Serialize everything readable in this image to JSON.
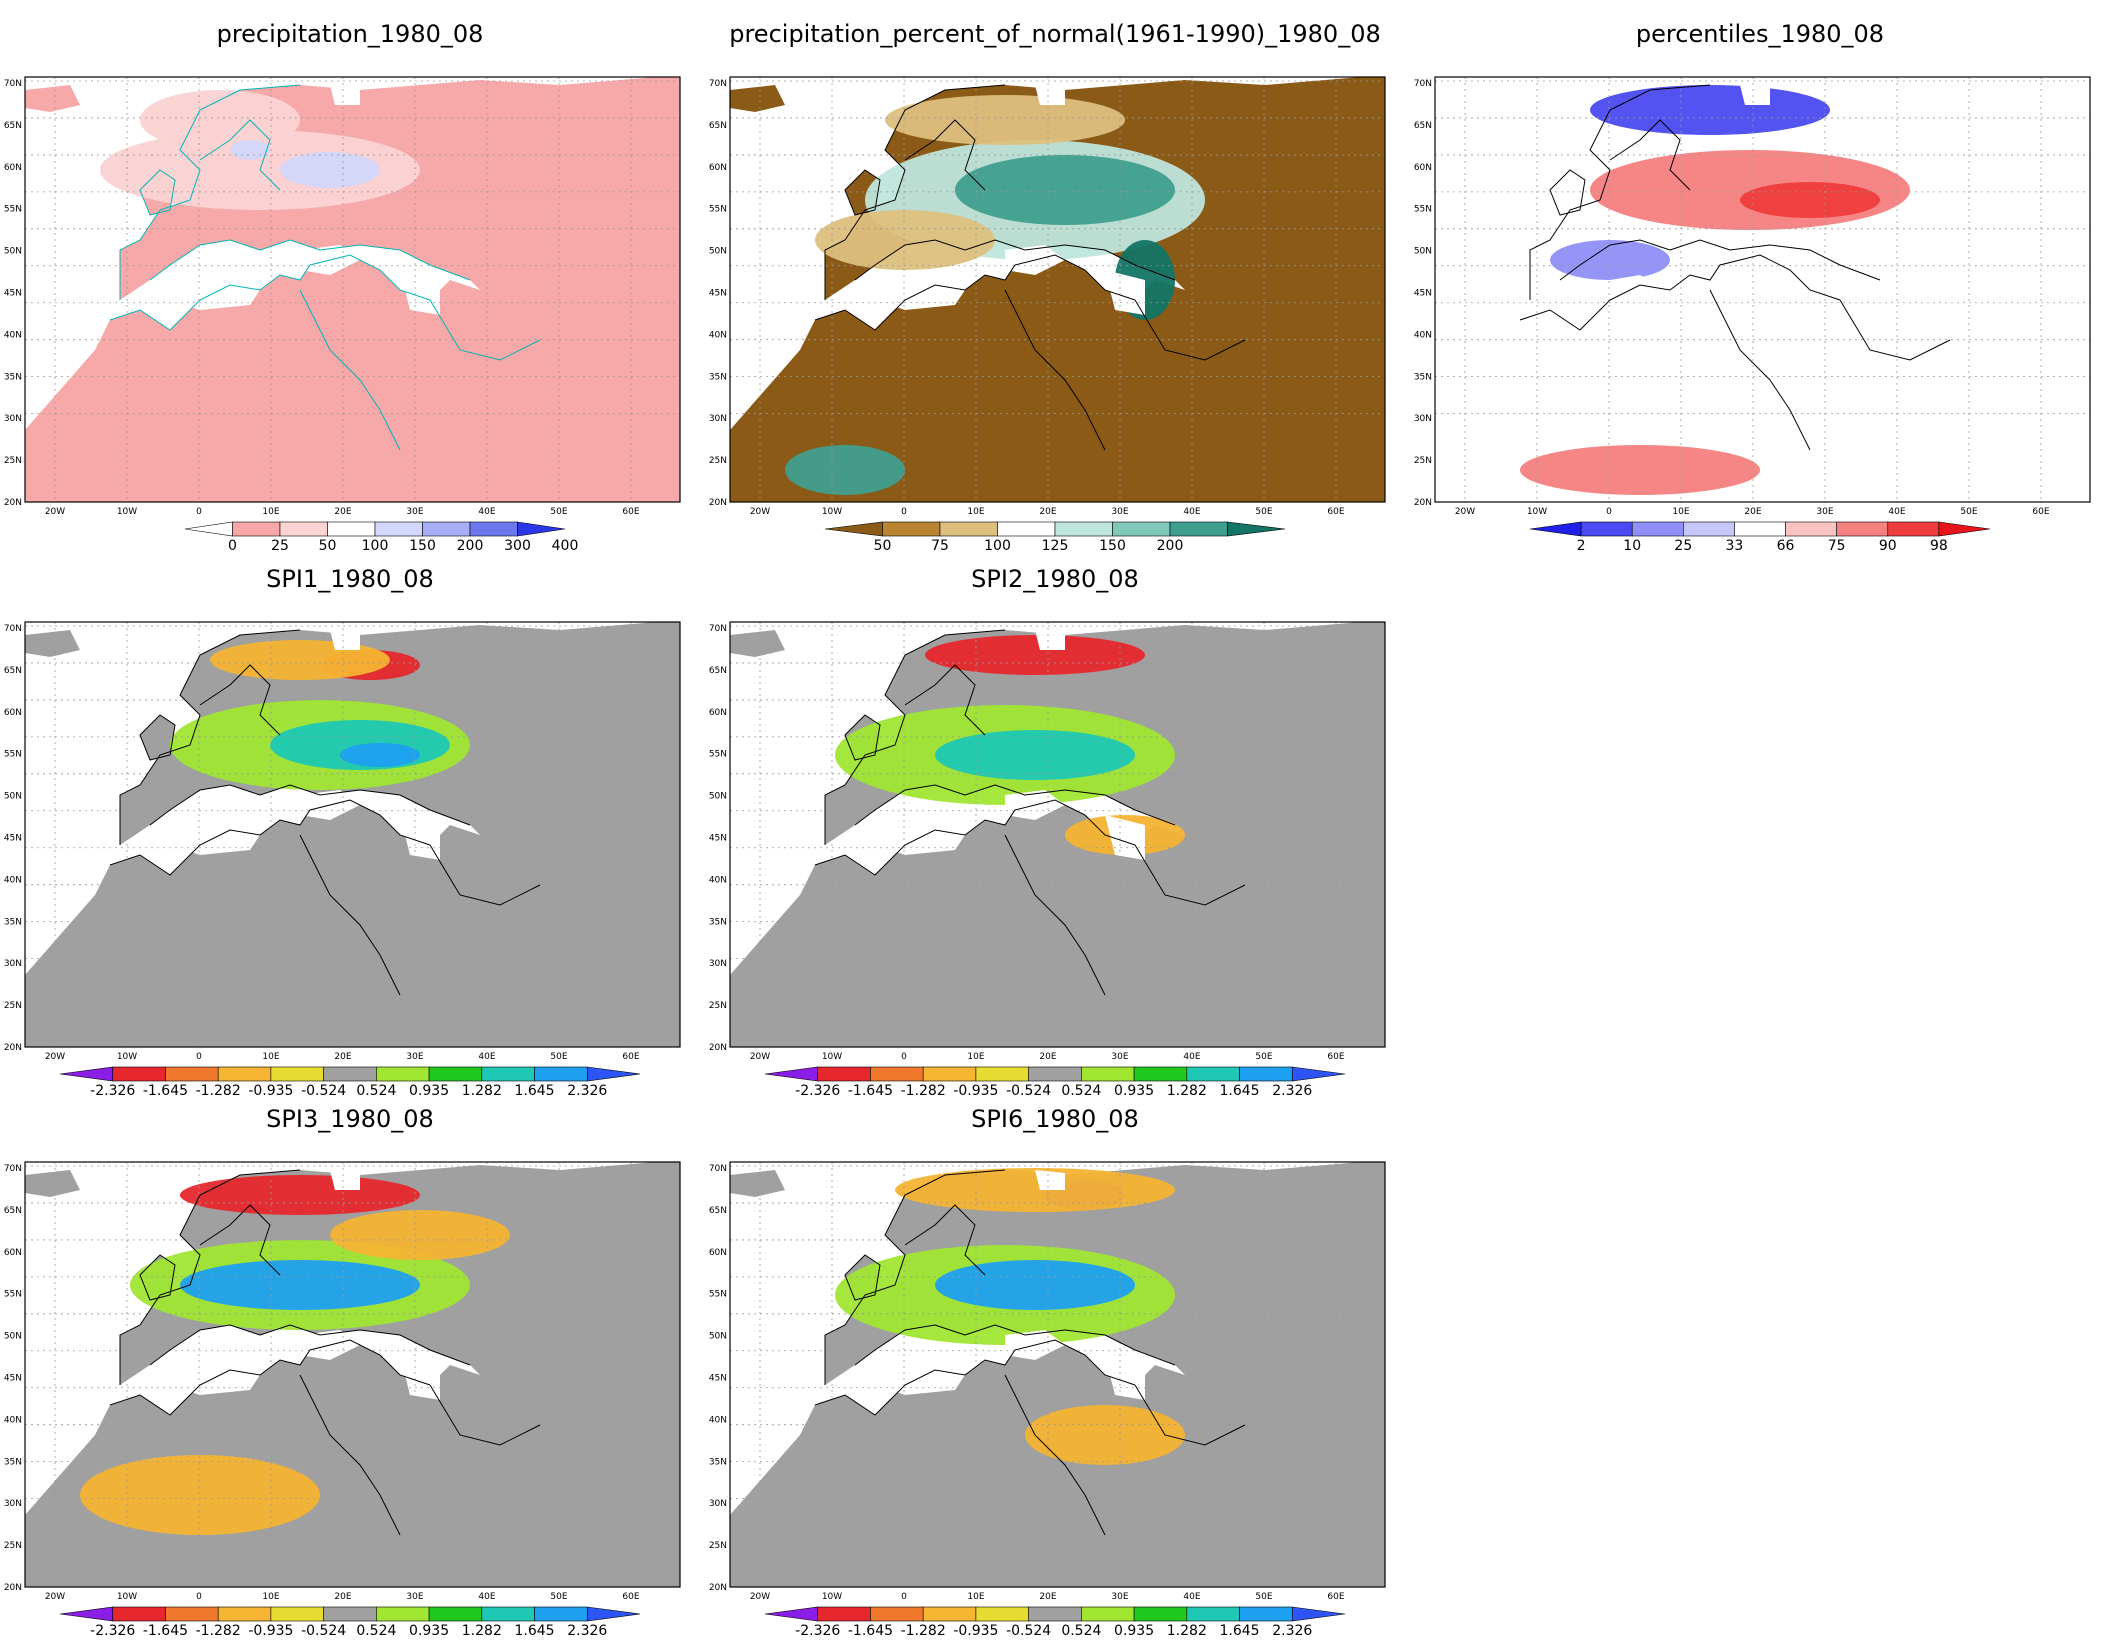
{
  "axes": {
    "lat_labels": [
      "70N",
      "65N",
      "60N",
      "55N",
      "50N",
      "45N",
      "40N",
      "35N",
      "30N",
      "25N",
      "20N"
    ],
    "lon_labels": [
      "20W",
      "10W",
      "0",
      "10E",
      "20E",
      "30E",
      "40E",
      "50E",
      "60E"
    ]
  },
  "colorbars": {
    "precip": {
      "colors": [
        "#ffffff",
        "#f7a7a7",
        "#fbd3d3",
        "#ffffff",
        "#d3d7fb",
        "#a7aef5",
        "#6e78ee",
        "#2b37e6"
      ],
      "labels": [
        "0",
        "25",
        "50",
        "100",
        "150",
        "200",
        "300",
        "400"
      ]
    },
    "pct": {
      "colors": [
        "#8b5a17",
        "#b98532",
        "#ddc07e",
        "#ffffff",
        "#bfe6dc",
        "#80c9b9",
        "#3f9f8e",
        "#127565"
      ],
      "labels": [
        "50",
        "75",
        "100",
        "125",
        "150",
        "200"
      ]
    },
    "perc": {
      "colors": [
        "#1f1fe8",
        "#4a4af0",
        "#8f8ff7",
        "#c6c6fb",
        "#ffffff",
        "#fbc2c2",
        "#f58080",
        "#ef3c3c",
        "#e8141c"
      ],
      "labels": [
        "2",
        "10",
        "25",
        "33",
        "66",
        "75",
        "90",
        "98"
      ]
    },
    "spi": {
      "colors": [
        "#8b1ee6",
        "#e6282d",
        "#f0782d",
        "#f5b432",
        "#e6dc32",
        "#a0a0a0",
        "#a0e632",
        "#1ec81e",
        "#1ec8b4",
        "#1ea0f0",
        "#2d55f5"
      ],
      "labels": [
        "-2.326",
        "-1.645",
        "-1.282",
        "-0.935",
        "-0.524",
        "0.524",
        "0.935",
        "1.282",
        "1.645",
        "2.326"
      ]
    }
  },
  "panels": [
    {
      "id": "precipitation",
      "title": "precipitation_1980_08",
      "colorbar": "precip",
      "land": "#f7a9a9",
      "outline": "#00b4b4",
      "blobs": [
        {
          "c": "#fbd3d3",
          "x": 260,
          "y": 120,
          "rx": 160,
          "ry": 40
        },
        {
          "c": "#d3d7fb",
          "x": 330,
          "y": 120,
          "rx": 50,
          "ry": 18
        },
        {
          "c": "#fbd3d3",
          "x": 220,
          "y": 70,
          "rx": 80,
          "ry": 30
        },
        {
          "c": "#d3d7fb",
          "x": 250,
          "y": 100,
          "rx": 20,
          "ry": 10
        }
      ]
    },
    {
      "id": "percent_of_normal",
      "title": "precipitation_percent_of_normal(1961-1990)_1980_08",
      "colorbar": "pct",
      "land": "#8b5a17",
      "outline": "#000000",
      "blobs": [
        {
          "c": "#bfe6dc",
          "x": 330,
          "y": 150,
          "rx": 170,
          "ry": 60
        },
        {
          "c": "#3f9f8e",
          "x": 360,
          "y": 140,
          "rx": 110,
          "ry": 35
        },
        {
          "c": "#ddc07e",
          "x": 300,
          "y": 70,
          "rx": 120,
          "ry": 25
        },
        {
          "c": "#ddc07e",
          "x": 200,
          "y": 190,
          "rx": 90,
          "ry": 30
        },
        {
          "c": "#127565",
          "x": 440,
          "y": 230,
          "rx": 30,
          "ry": 40
        },
        {
          "c": "#3f9f8e",
          "x": 140,
          "y": 420,
          "rx": 60,
          "ry": 25
        }
      ]
    },
    {
      "id": "percentiles",
      "title": "percentiles_1980_08",
      "colorbar": "perc",
      "land": "#ffffff",
      "outline": "#000000",
      "blobs": [
        {
          "c": "#f58080",
          "x": 340,
          "y": 140,
          "rx": 160,
          "ry": 40
        },
        {
          "c": "#ef3c3c",
          "x": 400,
          "y": 150,
          "rx": 70,
          "ry": 18
        },
        {
          "c": "#4a4af0",
          "x": 300,
          "y": 60,
          "rx": 120,
          "ry": 25
        },
        {
          "c": "#8f8ff7",
          "x": 200,
          "y": 210,
          "rx": 60,
          "ry": 20
        },
        {
          "c": "#f58080",
          "x": 230,
          "y": 420,
          "rx": 120,
          "ry": 25
        }
      ]
    },
    {
      "id": "spi1",
      "title": "SPI1_1980_08",
      "colorbar": "spi",
      "land": "#a0a0a0",
      "outline": "#000000",
      "blobs": [
        {
          "c": "#a0e632",
          "x": 320,
          "y": 150,
          "rx": 150,
          "ry": 45
        },
        {
          "c": "#1ec8b4",
          "x": 360,
          "y": 150,
          "rx": 90,
          "ry": 25
        },
        {
          "c": "#1ea0f0",
          "x": 380,
          "y": 160,
          "rx": 40,
          "ry": 12
        },
        {
          "c": "#e6282d",
          "x": 370,
          "y": 70,
          "rx": 50,
          "ry": 15
        },
        {
          "c": "#f5b432",
          "x": 300,
          "y": 65,
          "rx": 90,
          "ry": 20
        }
      ]
    },
    {
      "id": "spi2",
      "title": "SPI2_1980_08",
      "colorbar": "spi",
      "land": "#a0a0a0",
      "outline": "#000000",
      "blobs": [
        {
          "c": "#a0e632",
          "x": 300,
          "y": 160,
          "rx": 170,
          "ry": 50
        },
        {
          "c": "#1ec8b4",
          "x": 330,
          "y": 160,
          "rx": 100,
          "ry": 25
        },
        {
          "c": "#e6282d",
          "x": 330,
          "y": 60,
          "rx": 110,
          "ry": 20
        },
        {
          "c": "#f5b432",
          "x": 420,
          "y": 240,
          "rx": 60,
          "ry": 20
        }
      ]
    },
    {
      "id": "spi3",
      "title": "SPI3_1980_08",
      "colorbar": "spi",
      "land": "#a0a0a0",
      "outline": "#000000",
      "blobs": [
        {
          "c": "#a0e632",
          "x": 300,
          "y": 150,
          "rx": 170,
          "ry": 45
        },
        {
          "c": "#1ea0f0",
          "x": 300,
          "y": 150,
          "rx": 120,
          "ry": 25
        },
        {
          "c": "#e6282d",
          "x": 300,
          "y": 60,
          "rx": 120,
          "ry": 20
        },
        {
          "c": "#f5b432",
          "x": 420,
          "y": 100,
          "rx": 90,
          "ry": 25
        },
        {
          "c": "#f5b432",
          "x": 200,
          "y": 360,
          "rx": 120,
          "ry": 40
        }
      ]
    },
    {
      "id": "spi6",
      "title": "SPI6_1980_08",
      "colorbar": "spi",
      "land": "#a0a0a0",
      "outline": "#000000",
      "blobs": [
        {
          "c": "#a0e632",
          "x": 300,
          "y": 160,
          "rx": 170,
          "ry": 50
        },
        {
          "c": "#1ea0f0",
          "x": 330,
          "y": 150,
          "rx": 100,
          "ry": 25
        },
        {
          "c": "#8b1ee6",
          "x": 380,
          "y": 60,
          "rx": 40,
          "ry": 15
        },
        {
          "c": "#f5b432",
          "x": 330,
          "y": 55,
          "rx": 140,
          "ry": 22
        },
        {
          "c": "#f5b432",
          "x": 400,
          "y": 300,
          "rx": 80,
          "ry": 30
        }
      ]
    }
  ]
}
